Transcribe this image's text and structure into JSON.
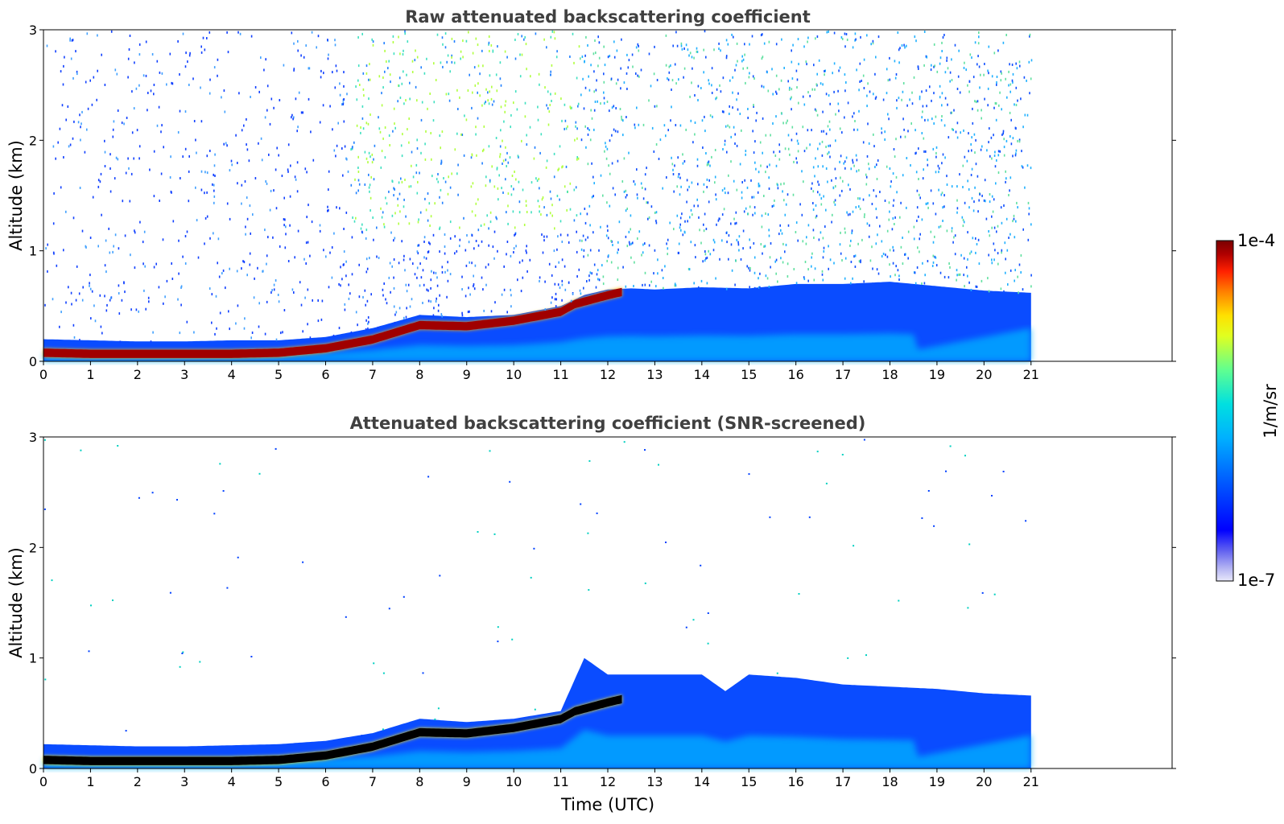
{
  "chart_data": [
    {
      "type": "heatmap",
      "title": "Raw attenuated backscattering coefficient",
      "xlabel": "",
      "ylabel": "Altitude (km)",
      "xlim": [
        0,
        24
      ],
      "ylim": [
        0,
        3
      ],
      "x_ticks": [
        0,
        1,
        2,
        3,
        4,
        5,
        6,
        7,
        8,
        9,
        10,
        11,
        12,
        13,
        14,
        15,
        16,
        17,
        18,
        19,
        20,
        21
      ],
      "y_ticks": [
        0,
        1,
        2,
        3
      ],
      "data_time_range": [
        0,
        21
      ],
      "series": [
        {
          "name": "aerosol_layer_top_km",
          "x": [
            0,
            1,
            2,
            3,
            4,
            5,
            6,
            7,
            8,
            9,
            10,
            11,
            11.5,
            12,
            12.5,
            13,
            14,
            15,
            16,
            17,
            18,
            19,
            20,
            21
          ],
          "y": [
            0.2,
            0.19,
            0.18,
            0.18,
            0.19,
            0.19,
            0.22,
            0.3,
            0.42,
            0.4,
            0.42,
            0.5,
            0.6,
            0.65,
            0.66,
            0.65,
            0.67,
            0.66,
            0.7,
            0.7,
            0.72,
            0.68,
            0.64,
            0.62
          ]
        },
        {
          "name": "strong_layer_center_km",
          "x": [
            0,
            1,
            2,
            3,
            4,
            5,
            6,
            7,
            8,
            9,
            10,
            11,
            11.3,
            12,
            12.3
          ],
          "y": [
            0.08,
            0.07,
            0.07,
            0.07,
            0.07,
            0.08,
            0.12,
            0.2,
            0.33,
            0.32,
            0.37,
            0.45,
            0.52,
            0.6,
            0.63
          ]
        }
      ]
    },
    {
      "type": "heatmap",
      "title": "Attenuated backscattering coefficient (SNR-screened)",
      "xlabel": "Time (UTC)",
      "ylabel": "Altitude (km)",
      "xlim": [
        0,
        24
      ],
      "ylim": [
        0,
        3
      ],
      "x_ticks": [
        0,
        1,
        2,
        3,
        4,
        5,
        6,
        7,
        8,
        9,
        10,
        11,
        12,
        13,
        14,
        15,
        16,
        17,
        18,
        19,
        20,
        21
      ],
      "y_ticks": [
        0,
        1,
        2,
        3
      ],
      "data_time_range": [
        0,
        21
      ],
      "series": [
        {
          "name": "screened_layer_top_km",
          "x": [
            0,
            1,
            2,
            3,
            4,
            5,
            6,
            7,
            8,
            9,
            10,
            11,
            11.5,
            12,
            12.5,
            13,
            14,
            14.5,
            15,
            16,
            17,
            18,
            19,
            20,
            21
          ],
          "y": [
            0.22,
            0.21,
            0.2,
            0.2,
            0.21,
            0.22,
            0.25,
            0.32,
            0.45,
            0.42,
            0.45,
            0.52,
            1.0,
            0.85,
            0.85,
            0.85,
            0.85,
            0.7,
            0.85,
            0.82,
            0.76,
            0.74,
            0.72,
            0.68,
            0.66
          ]
        }
      ]
    }
  ],
  "colorbar": {
    "max_label": "1e-4",
    "min_label": "1e-7",
    "unit_label": "1/m/sr",
    "colors": [
      "#e8e8fa",
      "#b0b0f2",
      "#7070f0",
      "#0000ff",
      "#0050ff",
      "#00a0ff",
      "#00e0e0",
      "#80ff80",
      "#ffff00",
      "#ff9000",
      "#ff2000",
      "#a00000",
      "#7a0000"
    ]
  }
}
